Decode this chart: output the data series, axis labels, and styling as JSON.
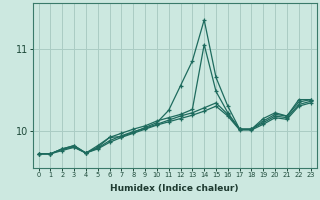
{
  "xlabel": "Humidex (Indice chaleur)",
  "ylabel": "",
  "background_color": "#cce8e0",
  "grid_color": "#aaccc4",
  "line_color": "#1e6b5e",
  "x_ticks": [
    0,
    1,
    2,
    3,
    4,
    5,
    6,
    7,
    8,
    9,
    10,
    11,
    12,
    13,
    14,
    15,
    16,
    17,
    18,
    19,
    20,
    21,
    22,
    23
  ],
  "y_ticks": [
    10,
    11
  ],
  "ylim": [
    9.55,
    11.55
  ],
  "xlim": [
    -0.5,
    23.5
  ],
  "line1_y": [
    9.72,
    9.72,
    9.78,
    9.82,
    9.73,
    9.8,
    9.92,
    9.93,
    9.98,
    10.04,
    10.1,
    10.25,
    10.55,
    10.85,
    11.35,
    10.65,
    10.3,
    10.02,
    10.02,
    10.15,
    10.22,
    10.18,
    10.38,
    10.38
  ],
  "line2_y": [
    9.72,
    9.72,
    9.78,
    9.82,
    9.73,
    9.82,
    9.92,
    9.97,
    10.02,
    10.06,
    10.12,
    10.16,
    10.2,
    10.26,
    11.05,
    10.48,
    10.22,
    10.02,
    10.02,
    10.12,
    10.2,
    10.18,
    10.35,
    10.38
  ],
  "line3_y": [
    9.72,
    9.72,
    9.78,
    9.8,
    9.73,
    9.79,
    9.88,
    9.94,
    9.99,
    10.03,
    10.08,
    10.13,
    10.18,
    10.22,
    10.28,
    10.34,
    10.2,
    10.02,
    10.02,
    10.1,
    10.18,
    10.16,
    10.32,
    10.36
  ],
  "line4_y": [
    9.72,
    9.72,
    9.76,
    9.8,
    9.73,
    9.78,
    9.86,
    9.92,
    9.97,
    10.02,
    10.07,
    10.11,
    10.15,
    10.19,
    10.24,
    10.3,
    10.18,
    10.01,
    10.01,
    10.08,
    10.16,
    10.14,
    10.3,
    10.34
  ]
}
